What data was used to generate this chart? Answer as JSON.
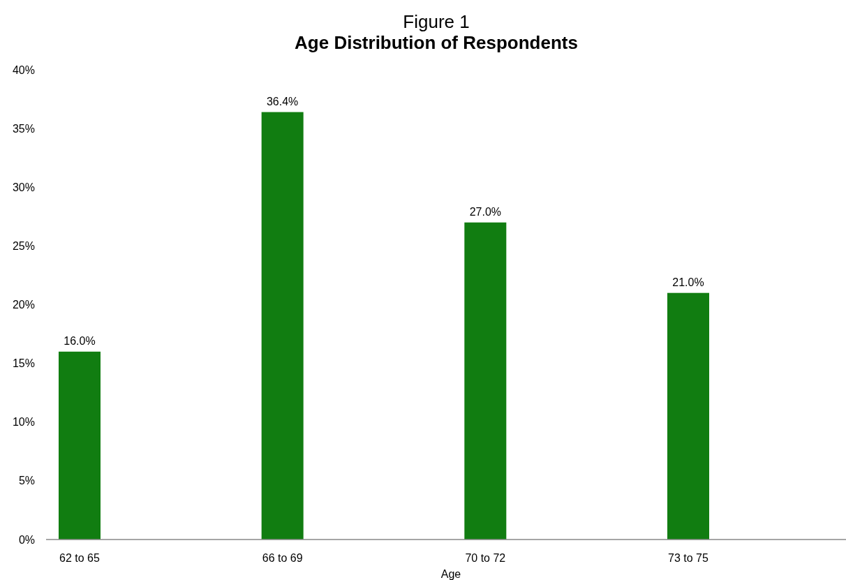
{
  "chart_data": {
    "type": "bar",
    "title": "Figure 1",
    "subtitle": "Age Distribution of Respondents",
    "xlabel": "Age",
    "categories": [
      "62 to 65",
      "66 to 69",
      "70 to 72",
      "73 to 75"
    ],
    "values": [
      16.0,
      36.4,
      27.0,
      21.0
    ],
    "value_labels": [
      "16.0%",
      "36.4%",
      "27.0%",
      "21.0%"
    ],
    "color": "#117d11",
    "ylim": [
      0,
      40
    ],
    "yticks": [
      {
        "value": 0,
        "label": "0%"
      },
      {
        "value": 5,
        "label": "5%"
      },
      {
        "value": 10,
        "label": "10%"
      },
      {
        "value": 15,
        "label": "15%"
      },
      {
        "value": 20,
        "label": "20%"
      },
      {
        "value": 25,
        "label": "25%"
      },
      {
        "value": 30,
        "label": "30%"
      },
      {
        "value": 35,
        "label": "35%"
      },
      {
        "value": 40,
        "label": "40%"
      }
    ],
    "grid": false
  }
}
